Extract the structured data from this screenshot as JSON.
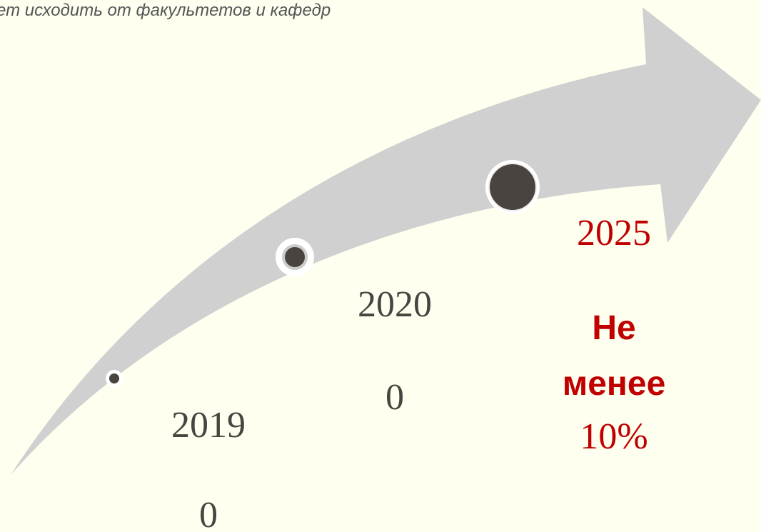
{
  "header": {
    "title": "ет исходить от факультетов и кафедр"
  },
  "milestones": [
    {
      "year": "2019",
      "value": "0"
    },
    {
      "year": "2020",
      "value": "0"
    },
    {
      "year": "2025",
      "value_lines": [
        "Не",
        "менее",
        "10%"
      ]
    }
  ]
}
